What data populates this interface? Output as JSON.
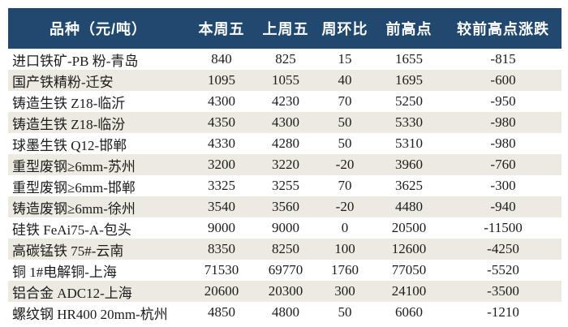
{
  "chart_data": {
    "type": "table",
    "columns": [
      "品种（元/吨）",
      "本周五",
      "上周五",
      "周环比",
      "前高点",
      "较前高点涨跌"
    ],
    "rows": [
      [
        "进口铁矿-PB 粉-青岛",
        "840",
        "825",
        "15",
        "1655",
        "-815"
      ],
      [
        "国产铁精粉-迁安",
        "1095",
        "1055",
        "40",
        "1695",
        "-600"
      ],
      [
        "铸造生铁 Z18-临沂",
        "4300",
        "4230",
        "70",
        "5250",
        "-950"
      ],
      [
        "铸造生铁 Z18-临汾",
        "4350",
        "4300",
        "50",
        "5330",
        "-980"
      ],
      [
        "球墨生铁 Q12-邯郸",
        "4330",
        "4280",
        "50",
        "5310",
        "-980"
      ],
      [
        "重型废钢≥6mm-苏州",
        "3200",
        "3220",
        "-20",
        "3960",
        "-760"
      ],
      [
        "重型废钢≥6mm-邯郸",
        "3325",
        "3255",
        "70",
        "3625",
        "-300"
      ],
      [
        "铸造废钢≥6mm-徐州",
        "3540",
        "3560",
        "-20",
        "4480",
        "-940"
      ],
      [
        "硅铁 FeAi75-A-包头",
        "9000",
        "9000",
        "0",
        "20500",
        "-11500"
      ],
      [
        "高碳锰铁 75#-云南",
        "8350",
        "8250",
        "100",
        "12600",
        "-4250"
      ],
      [
        "铜 1#电解铜-上海",
        "71530",
        "69770",
        "1760",
        "77050",
        "-5520"
      ],
      [
        "铝合金 ADC12-上海",
        "20600",
        "20300",
        "300",
        "24100",
        "-3500"
      ],
      [
        "螺纹钢 HR400 20mm-杭州",
        "4850",
        "4800",
        "50",
        "6060",
        "-1210"
      ]
    ],
    "colors": {
      "header_bg": "#21486F",
      "header_text": "#FFFFFF",
      "alt_row_bg": "#ECEAE1",
      "body_text": "#1C1C1C"
    }
  }
}
